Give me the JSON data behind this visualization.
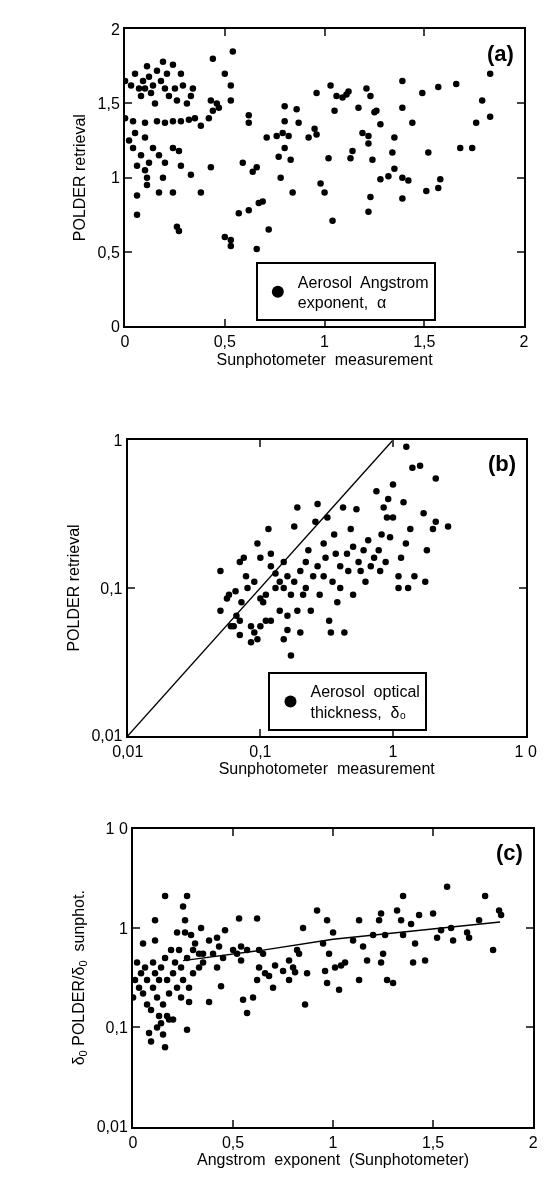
{
  "chart_data": [
    {
      "type": "scatter",
      "xlabel": "Sunphotometer  measurement",
      "ylabel": "POLDER retrieval",
      "annotations": [
        "(a)"
      ],
      "legend": "bottom",
      "xlim": [
        0,
        2
      ],
      "xticks": [
        0,
        {
          "value": 0.5,
          "label": "0,5"
        },
        1,
        {
          "value": 1.5,
          "label": "1,5"
        },
        2
      ],
      "ylim": [
        0,
        2
      ],
      "yticks": [
        0,
        {
          "value": 0.5,
          "label": "0,5"
        },
        1,
        {
          "value": 1.5,
          "label": "1,5"
        },
        2
      ],
      "series": [
        {
          "name": "Aerosol  Angstrom\nexponent,  α",
          "color": "#000000",
          "marker": "circle",
          "x": [
            0.0,
            0.03,
            0.05,
            0.07,
            0.08,
            0.09,
            0.1,
            0.11,
            0.12,
            0.13,
            0.14,
            0.15,
            0.16,
            0.18,
            0.19,
            0.2,
            0.21,
            0.22,
            0.24,
            0.25,
            0.26,
            0.28,
            0.29,
            0.31,
            0.33,
            0.34,
            0.0,
            0.04,
            0.1,
            0.16,
            0.2,
            0.24,
            0.28,
            0.32,
            0.35,
            0.38,
            0.42,
            0.44,
            0.46,
            0.43,
            0.47,
            0.02,
            0.04,
            0.06,
            0.08,
            0.1,
            0.11,
            0.12,
            0.14,
            0.17,
            0.19,
            0.2,
            0.24,
            0.27,
            0.28,
            0.33,
            0.06,
            0.06,
            0.11,
            0.17,
            0.24,
            0.38,
            0.43,
            0.26,
            0.27,
            0.05,
            0.1,
            0.44,
            0.54,
            0.5,
            0.53,
            0.53,
            0.62,
            0.62,
            0.59,
            0.64,
            0.66,
            0.57,
            0.62,
            0.67,
            0.69,
            0.72,
            0.5,
            0.53,
            0.53,
            0.66,
            0.71,
            0.76,
            0.79,
            0.8,
            0.8,
            0.82,
            0.77,
            0.8,
            0.83,
            0.78,
            0.86,
            0.87,
            0.84,
            0.92,
            0.95,
            0.96,
            0.96,
            0.98,
            1.0,
            1.02,
            1.03,
            1.04,
            1.05,
            1.06,
            1.09,
            1.11,
            1.12,
            1.13,
            1.14,
            1.17,
            1.19,
            1.21,
            1.22,
            1.22,
            1.22,
            1.23,
            1.23,
            1.24,
            1.25,
            1.26,
            1.28,
            1.28,
            1.32,
            1.35,
            1.35,
            1.34,
            1.39,
            1.39,
            1.39,
            1.39,
            1.42,
            1.44,
            1.49,
            1.51,
            1.52,
            1.57,
            1.57,
            1.58,
            1.66,
            1.68,
            1.74,
            1.76,
            1.79,
            1.83,
            1.83
          ],
          "values": [
            1.65,
            1.62,
            1.7,
            1.6,
            1.55,
            1.65,
            1.6,
            1.75,
            1.68,
            1.57,
            1.62,
            1.5,
            1.72,
            1.65,
            1.78,
            1.6,
            1.7,
            1.55,
            1.76,
            1.6,
            1.52,
            1.7,
            1.62,
            1.5,
            1.55,
            1.6,
            1.4,
            1.38,
            1.37,
            1.38,
            1.37,
            1.38,
            1.38,
            1.39,
            1.4,
            1.35,
            1.4,
            1.45,
            1.5,
            1.52,
            1.47,
            1.25,
            1.2,
            1.08,
            1.15,
            1.05,
            1.0,
            1.1,
            1.2,
            1.15,
            1.0,
            1.1,
            1.2,
            1.18,
            1.08,
            1.02,
            0.88,
            0.75,
            0.95,
            0.9,
            0.9,
            0.9,
            1.07,
            0.67,
            0.64,
            1.3,
            1.27,
            1.8,
            1.85,
            1.7,
            1.62,
            1.52,
            1.42,
            1.37,
            1.1,
            1.04,
            1.07,
            0.76,
            0.78,
            0.83,
            0.84,
            0.65,
            0.6,
            0.58,
            0.54,
            0.52,
            1.27,
            1.28,
            1.3,
            1.48,
            1.38,
            1.28,
            1.14,
            1.2,
            1.12,
            1.0,
            1.46,
            1.37,
            0.9,
            1.27,
            1.33,
            1.29,
            1.57,
            0.96,
            0.9,
            1.13,
            1.62,
            0.71,
            1.45,
            1.55,
            1.54,
            1.56,
            1.58,
            1.13,
            1.18,
            1.47,
            1.3,
            1.6,
            1.28,
            1.23,
            0.77,
            0.87,
            1.55,
            1.12,
            1.44,
            1.45,
            1.36,
            0.99,
            1.01,
            1.27,
            1.06,
            1.17,
            1.65,
            1.47,
            1.0,
            0.86,
            0.98,
            1.37,
            1.57,
            0.91,
            1.17,
            1.61,
            0.93,
            0.99,
            1.63,
            1.2,
            1.2,
            1.37,
            1.52,
            1.7,
            1.41
          ]
        }
      ]
    },
    {
      "type": "scatter",
      "xlabel": "Sunphotometer  measurement",
      "ylabel": "POLDER retrieval",
      "annotations": [
        "(b)"
      ],
      "legend": "bottom",
      "log": "xy",
      "xlim": [
        0.01,
        10
      ],
      "xticks": [
        {
          "value": 0.01,
          "label": "0,01"
        },
        {
          "value": 0.1,
          "label": "0,1"
        },
        1,
        {
          "value": 10,
          "label": "1 0"
        }
      ],
      "ylim": [
        0.01,
        1
      ],
      "yticks": [
        {
          "value": 0.01,
          "label": "0,01"
        },
        {
          "value": 0.1,
          "label": "0,1"
        },
        1
      ],
      "series": [
        {
          "name": "Aerosol  optical\nthickness,  δ₀",
          "color": "#000000",
          "marker": "circle",
          "x": [
            0.05,
            0.05,
            0.056,
            0.058,
            0.06,
            0.063,
            0.065,
            0.066,
            0.07,
            0.07,
            0.07,
            0.072,
            0.075,
            0.078,
            0.08,
            0.085,
            0.085,
            0.09,
            0.09,
            0.095,
            0.095,
            0.1,
            0.1,
            0.1,
            0.105,
            0.11,
            0.11,
            0.115,
            0.12,
            0.12,
            0.12,
            0.13,
            0.13,
            0.14,
            0.14,
            0.15,
            0.15,
            0.15,
            0.16,
            0.16,
            0.16,
            0.17,
            0.17,
            0.18,
            0.18,
            0.19,
            0.19,
            0.2,
            0.2,
            0.21,
            0.22,
            0.22,
            0.23,
            0.24,
            0.25,
            0.26,
            0.27,
            0.27,
            0.28,
            0.3,
            0.3,
            0.31,
            0.32,
            0.33,
            0.34,
            0.35,
            0.36,
            0.37,
            0.38,
            0.4,
            0.4,
            0.42,
            0.43,
            0.45,
            0.46,
            0.48,
            0.5,
            0.5,
            0.53,
            0.55,
            0.57,
            0.6,
            0.62,
            0.65,
            0.68,
            0.72,
            0.75,
            0.78,
            0.8,
            0.82,
            0.85,
            0.88,
            0.9,
            0.92,
            0.95,
            1.0,
            1.0,
            1.1,
            1.1,
            1.15,
            1.2,
            1.25,
            1.3,
            1.35,
            1.4,
            1.45,
            1.6,
            1.7,
            1.75,
            1.8,
            2.0,
            2.1,
            2.1,
            2.6,
            1.26
          ],
          "values": [
            0.13,
            0.07,
            0.085,
            0.09,
            0.055,
            0.055,
            0.095,
            0.065,
            0.06,
            0.048,
            0.15,
            0.08,
            0.16,
            0.12,
            0.1,
            0.055,
            0.043,
            0.11,
            0.05,
            0.2,
            0.045,
            0.16,
            0.085,
            0.055,
            0.08,
            0.09,
            0.06,
            0.25,
            0.17,
            0.14,
            0.06,
            0.1,
            0.125,
            0.11,
            0.07,
            0.045,
            0.15,
            0.1,
            0.12,
            0.065,
            0.052,
            0.09,
            0.035,
            0.11,
            0.26,
            0.35,
            0.07,
            0.13,
            0.05,
            0.09,
            0.15,
            0.1,
            0.18,
            0.07,
            0.12,
            0.28,
            0.37,
            0.14,
            0.09,
            0.2,
            0.12,
            0.16,
            0.3,
            0.06,
            0.05,
            0.11,
            0.23,
            0.17,
            0.08,
            0.1,
            0.14,
            0.35,
            0.05,
            0.17,
            0.13,
            0.25,
            0.09,
            0.19,
            0.34,
            0.15,
            0.13,
            0.18,
            0.11,
            0.21,
            0.14,
            0.16,
            0.45,
            0.18,
            0.13,
            0.23,
            0.35,
            0.15,
            0.3,
            0.4,
            0.22,
            0.5,
            0.3,
            0.1,
            0.12,
            0.16,
            0.38,
            0.2,
            0.1,
            0.25,
            0.65,
            0.12,
            0.67,
            0.32,
            0.11,
            0.18,
            0.25,
            0.55,
            0.28,
            0.26,
            0.9
          ]
        },
        {
          "color": "#000000",
          "type": "line",
          "x": [
            0.01,
            1
          ],
          "values": [
            0.01,
            1
          ]
        }
      ]
    },
    {
      "type": "scatter",
      "xlabel": "Angstrom  exponent  (Sunphotometer)",
      "ylabel": "δ$_{0}$ POLDER/δ$_{0}$  sunphot.",
      "annotations": [
        "(c)"
      ],
      "log": "y",
      "xlim": [
        0,
        2
      ],
      "xticks": [
        0,
        {
          "value": 0.5,
          "label": "0,5"
        },
        1,
        {
          "value": 1.5,
          "label": "1,5"
        },
        2
      ],
      "ylim": [
        0.01,
        10
      ],
      "yticks": [
        {
          "value": 0.01,
          "label": "0,01"
        },
        {
          "value": 0.1,
          "label": "0,1"
        },
        1,
        {
          "value": 10,
          "label": "1 0"
        }
      ],
      "series": [
        {
          "color": "#000000",
          "marker": "circle",
          "x": [
            0,
            0.01,
            0.02,
            0.03,
            0.04,
            0.05,
            0.05,
            0.06,
            0.07,
            0.07,
            0.08,
            0.09,
            0.09,
            0.1,
            0.1,
            0.11,
            0.11,
            0.11,
            0.12,
            0.12,
            0.13,
            0.13,
            0.14,
            0.14,
            0.15,
            0.15,
            0.16,
            0.16,
            0.16,
            0.17,
            0.17,
            0.18,
            0.18,
            0.19,
            0.2,
            0.2,
            0.21,
            0.22,
            0.22,
            0.23,
            0.24,
            0.24,
            0.25,
            0.25,
            0.26,
            0.26,
            0.27,
            0.27,
            0.27,
            0.28,
            0.28,
            0.29,
            0.3,
            0.3,
            0.31,
            0.33,
            0.33,
            0.34,
            0.35,
            0.35,
            0.38,
            0.38,
            0.4,
            0.42,
            0.42,
            0.43,
            0.44,
            0.45,
            0.46,
            0.5,
            0.52,
            0.53,
            0.54,
            0.54,
            0.55,
            0.57,
            0.57,
            0.6,
            0.62,
            0.62,
            0.63,
            0.63,
            0.65,
            0.66,
            0.68,
            0.7,
            0.71,
            0.75,
            0.78,
            0.78,
            0.8,
            0.81,
            0.82,
            0.83,
            0.85,
            0.86,
            0.87,
            0.92,
            0.95,
            0.96,
            0.97,
            0.97,
            0.98,
            1.0,
            1.01,
            1.03,
            1.04,
            1.06,
            1.1,
            1.13,
            1.13,
            1.15,
            1.17,
            1.2,
            1.23,
            1.24,
            1.24,
            1.25,
            1.26,
            1.27,
            1.3,
            1.32,
            1.34,
            1.35,
            1.35,
            1.39,
            1.4,
            1.41,
            1.43,
            1.46,
            1.5,
            1.52,
            1.54,
            1.57,
            1.59,
            1.6,
            1.67,
            1.68,
            1.73,
            1.76,
            1.8,
            1.83,
            1.84
          ],
          "values": [
            0.2,
            0.3,
            0.45,
            0.25,
            0.35,
            0.7,
            0.22,
            0.4,
            0.3,
            0.17,
            0.088,
            0.15,
            0.072,
            0.45,
            0.25,
            0.35,
            0.75,
            1.2,
            0.1,
            0.2,
            0.3,
            0.13,
            0.11,
            0.4,
            0.085,
            0.17,
            0.063,
            0.5,
            2.1,
            0.3,
            0.13,
            0.12,
            0.22,
            0.6,
            0.12,
            0.35,
            0.45,
            0.25,
            0.9,
            0.6,
            0.2,
            0.4,
            1.65,
            0.3,
            0.9,
            1.2,
            2.1,
            0.095,
            0.5,
            0.18,
            0.25,
            0.85,
            0.35,
            0.6,
            0.7,
            0.4,
            0.55,
            1.0,
            0.45,
            0.55,
            0.18,
            0.75,
            0.55,
            0.4,
            0.8,
            0.65,
            0.26,
            0.5,
            0.95,
            0.6,
            0.55,
            1.25,
            0.47,
            0.65,
            0.19,
            0.6,
            0.14,
            0.2,
            1.25,
            0.3,
            0.4,
            0.6,
            0.55,
            0.35,
            0.33,
            0.25,
            0.42,
            0.37,
            0.47,
            0.3,
            0.4,
            0.36,
            0.6,
            0.55,
            1.0,
            0.17,
            0.35,
            1.5,
            0.7,
            0.37,
            1.2,
            0.28,
            0.55,
            0.9,
            0.4,
            0.24,
            0.42,
            0.45,
            0.75,
            1.2,
            0.3,
            0.65,
            0.47,
            0.85,
            1.2,
            1.4,
            0.45,
            0.55,
            0.85,
            0.3,
            0.28,
            1.5,
            1.2,
            2.1,
            0.85,
            1.1,
            0.45,
            0.7,
            1.35,
            0.47,
            1.4,
            0.8,
            0.95,
            2.6,
            1.0,
            0.75,
            0.9,
            0.8,
            1.2,
            2.1,
            0.6,
            1.5,
            1.35
          ]
        },
        {
          "color": "#000000",
          "type": "line",
          "x": [
            0.25,
            0.65,
            1.0,
            1.835
          ],
          "values": [
            0.47,
            0.6,
            0.77,
            1.15
          ]
        }
      ]
    }
  ]
}
